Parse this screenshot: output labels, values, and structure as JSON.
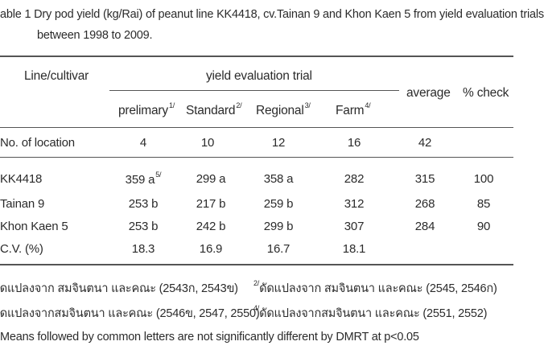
{
  "caption": {
    "line1": "able 1  Dry pod yield (kg/Rai) of peanut line KK4418, cv.Tainan 9 and Khon Kaen 5 from yield evaluation trials",
    "line2": "between 1998 to 2009."
  },
  "header": {
    "line_cultivar": "Line/cultivar",
    "yield_group": "yield evaluation trial",
    "average": "average",
    "check": "% check",
    "sub": [
      {
        "label": "prelimary",
        "sup": "1/"
      },
      {
        "label": "Standard",
        "sup": "2/"
      },
      {
        "label": "Regional",
        "sup": "3/"
      },
      {
        "label": "Farm",
        "sup": "4/"
      }
    ]
  },
  "location_row": {
    "label": "No. of location",
    "values": [
      "4",
      "10",
      "12",
      "16",
      "42"
    ]
  },
  "rows": [
    {
      "label": "KK4418",
      "prelim": "359 a",
      "prelim_sup": "5/",
      "standard": "299 a",
      "regional": "358 a",
      "farm": "282",
      "average": "315",
      "check": "100"
    },
    {
      "label": "Tainan 9",
      "prelim": "253 b",
      "prelim_sup": "",
      "standard": "217 b",
      "regional": "259 b",
      "farm": "312",
      "average": "268",
      "check": "85"
    },
    {
      "label": "Khon Kaen 5",
      "prelim": "253 b",
      "prelim_sup": "",
      "standard": "242 b",
      "regional": "299 b",
      "farm": "307",
      "average": "284",
      "check": "90"
    },
    {
      "label": "C.V. (%)",
      "prelim": "18.3",
      "prelim_sup": "",
      "standard": "16.9",
      "regional": "16.7",
      "farm": "18.1",
      "average": "",
      "check": ""
    }
  ],
  "footnotes": {
    "n1": "ัดแปลงจาก สมจินตนา และคณะ (2543ก, 2543ข)",
    "n2_sup": "2/",
    "n2": "ดัดแปลงจาก สมจินตนา และคณะ (2545, 2546ก)",
    "n3": "ัดแปลงจากสมจินตนา และคณะ (2546ข, 2547, 2550)",
    "n4_sup": "4/",
    "n4": "ดัดแปลงจากสมจินตนา และคณะ (2551, 2552)",
    "n5": "Means followed by common letters are not significantly different by DMRT at p<0.05"
  }
}
